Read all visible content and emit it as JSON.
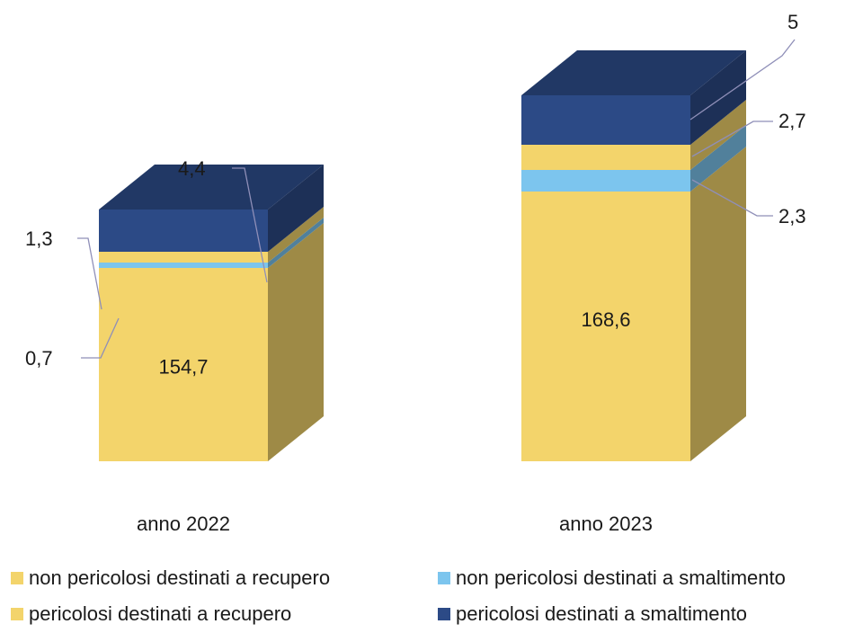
{
  "chart_data": {
    "type": "bar",
    "stacked": true,
    "three_d": true,
    "categories": [
      "anno 2022",
      "anno 2023"
    ],
    "series": [
      {
        "name": "non pericolosi destinati a recupero",
        "values": [
          154.7,
          168.6
        ],
        "color": "#F3D46B",
        "labels": [
          "154,7",
          "168,6"
        ]
      },
      {
        "name": "non pericolosi destinati a smaltimento",
        "values": [
          0.7,
          2.3
        ],
        "color": "#7CC5EE",
        "labels": [
          "0,7",
          "2,3"
        ]
      },
      {
        "name": "pericolosi destinati a recupero",
        "values": [
          1.3,
          2.7
        ],
        "color": "#F3D46B",
        "labels": [
          "1,3",
          "2,7"
        ]
      },
      {
        "name": "pericolosi destinati a smaltimento",
        "values": [
          4.4,
          5
        ],
        "color": "#2C4A86",
        "labels": [
          "4,4",
          "5"
        ]
      }
    ],
    "legend_position": "bottom",
    "grid": false
  }
}
